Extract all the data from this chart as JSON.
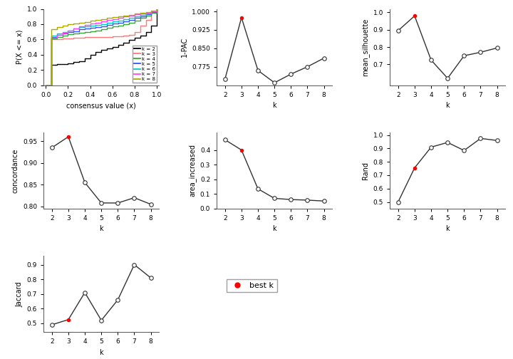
{
  "ecdf": {
    "k2": {
      "x": [
        0.0,
        0.05,
        0.1,
        0.15,
        0.2,
        0.25,
        0.3,
        0.35,
        0.4,
        0.45,
        0.5,
        0.55,
        0.6,
        0.65,
        0.7,
        0.75,
        0.8,
        0.85,
        0.9,
        0.95,
        1.0
      ],
      "y": [
        0.0,
        0.27,
        0.28,
        0.28,
        0.29,
        0.3,
        0.31,
        0.35,
        0.4,
        0.44,
        0.46,
        0.48,
        0.5,
        0.53,
        0.56,
        0.59,
        0.62,
        0.65,
        0.7,
        0.78,
        1.0
      ]
    },
    "k3": {
      "x": [
        0.0,
        0.05,
        0.1,
        0.15,
        0.2,
        0.25,
        0.3,
        0.35,
        0.4,
        0.45,
        0.5,
        0.55,
        0.6,
        0.65,
        0.7,
        0.75,
        0.8,
        0.85,
        0.9,
        0.95,
        1.0
      ],
      "y": [
        0.0,
        0.6,
        0.6,
        0.61,
        0.61,
        0.62,
        0.62,
        0.63,
        0.63,
        0.63,
        0.63,
        0.63,
        0.64,
        0.64,
        0.65,
        0.66,
        0.7,
        0.78,
        0.86,
        0.95,
        1.0
      ]
    },
    "k4": {
      "x": [
        0.0,
        0.05,
        0.1,
        0.15,
        0.2,
        0.25,
        0.3,
        0.35,
        0.4,
        0.45,
        0.5,
        0.55,
        0.6,
        0.65,
        0.7,
        0.75,
        0.8,
        0.85,
        0.9,
        0.95,
        1.0
      ],
      "y": [
        0.0,
        0.61,
        0.63,
        0.65,
        0.67,
        0.68,
        0.69,
        0.7,
        0.71,
        0.72,
        0.73,
        0.75,
        0.77,
        0.78,
        0.8,
        0.82,
        0.85,
        0.88,
        0.91,
        0.95,
        1.0
      ]
    },
    "k5": {
      "x": [
        0.0,
        0.05,
        0.1,
        0.15,
        0.2,
        0.25,
        0.3,
        0.35,
        0.4,
        0.45,
        0.5,
        0.55,
        0.6,
        0.65,
        0.7,
        0.75,
        0.8,
        0.85,
        0.9,
        0.95,
        1.0
      ],
      "y": [
        0.0,
        0.63,
        0.66,
        0.68,
        0.7,
        0.71,
        0.73,
        0.74,
        0.75,
        0.76,
        0.77,
        0.79,
        0.81,
        0.82,
        0.84,
        0.86,
        0.88,
        0.9,
        0.93,
        0.96,
        1.0
      ]
    },
    "k6": {
      "x": [
        0.0,
        0.05,
        0.1,
        0.15,
        0.2,
        0.25,
        0.3,
        0.35,
        0.4,
        0.45,
        0.5,
        0.55,
        0.6,
        0.65,
        0.7,
        0.75,
        0.8,
        0.85,
        0.9,
        0.95,
        1.0
      ],
      "y": [
        0.0,
        0.65,
        0.68,
        0.7,
        0.72,
        0.74,
        0.76,
        0.77,
        0.78,
        0.79,
        0.8,
        0.82,
        0.84,
        0.85,
        0.87,
        0.88,
        0.9,
        0.92,
        0.94,
        0.97,
        1.0
      ]
    },
    "k7": {
      "x": [
        0.0,
        0.05,
        0.1,
        0.15,
        0.2,
        0.25,
        0.3,
        0.35,
        0.4,
        0.45,
        0.5,
        0.55,
        0.6,
        0.65,
        0.7,
        0.75,
        0.8,
        0.85,
        0.9,
        0.95,
        1.0
      ],
      "y": [
        0.0,
        0.62,
        0.66,
        0.69,
        0.72,
        0.74,
        0.77,
        0.79,
        0.81,
        0.82,
        0.84,
        0.86,
        0.87,
        0.88,
        0.9,
        0.91,
        0.93,
        0.94,
        0.95,
        0.97,
        1.0
      ]
    },
    "k8": {
      "x": [
        0.0,
        0.05,
        0.1,
        0.15,
        0.2,
        0.25,
        0.3,
        0.35,
        0.4,
        0.45,
        0.5,
        0.55,
        0.6,
        0.65,
        0.7,
        0.75,
        0.8,
        0.85,
        0.9,
        0.95,
        1.0
      ],
      "y": [
        0.0,
        0.73,
        0.76,
        0.78,
        0.8,
        0.81,
        0.82,
        0.83,
        0.85,
        0.86,
        0.87,
        0.88,
        0.89,
        0.9,
        0.91,
        0.92,
        0.94,
        0.95,
        0.96,
        0.98,
        1.0
      ]
    }
  },
  "ecdf_colors": {
    "k2": "#000000",
    "k3": "#FF7777",
    "k4": "#33AA33",
    "k5": "#3355FF",
    "k6": "#00CCCC",
    "k7": "#FF44FF",
    "k8": "#AAAA00"
  },
  "pac": {
    "k": [
      2,
      3,
      4,
      5,
      6,
      7,
      8
    ],
    "y": [
      0.725,
      0.975,
      0.76,
      0.71,
      0.745,
      0.775,
      0.81
    ],
    "best_k": 3,
    "ylim": [
      0.7,
      1.01
    ],
    "yticks": [
      0.775,
      0.85,
      0.925,
      1.0
    ],
    "ylabel": "1-PAC"
  },
  "silhouette": {
    "k": [
      2,
      3,
      4,
      5,
      6,
      7,
      8
    ],
    "y": [
      0.895,
      0.98,
      0.725,
      0.62,
      0.75,
      0.77,
      0.795
    ],
    "best_k": 3,
    "ylim": [
      0.58,
      1.02
    ],
    "yticks": [
      0.7,
      0.8,
      0.9,
      1.0
    ],
    "ylabel": "mean_silhouette"
  },
  "concordance": {
    "k": [
      2,
      3,
      4,
      5,
      6,
      7,
      8
    ],
    "y": [
      0.935,
      0.96,
      0.855,
      0.808,
      0.808,
      0.82,
      0.805
    ],
    "best_k": 3,
    "ylim": [
      0.795,
      0.97
    ],
    "yticks": [
      0.8,
      0.85,
      0.9,
      0.95
    ],
    "ylabel": "concordance"
  },
  "area_increased": {
    "k": [
      2,
      3,
      4,
      5,
      6,
      7,
      8
    ],
    "y": [
      0.47,
      0.4,
      0.135,
      0.07,
      0.062,
      0.058,
      0.052
    ],
    "best_k": 3,
    "ylim": [
      0.0,
      0.52
    ],
    "yticks": [
      0.0,
      0.1,
      0.2,
      0.3,
      0.4
    ],
    "ylabel": "area_increased"
  },
  "rand": {
    "k": [
      2,
      3,
      4,
      5,
      6,
      7,
      8
    ],
    "y": [
      0.5,
      0.755,
      0.91,
      0.945,
      0.885,
      0.975,
      0.96
    ],
    "best_k": 3,
    "ylim": [
      0.45,
      1.02
    ],
    "yticks": [
      0.5,
      0.6,
      0.7,
      0.8,
      0.9,
      1.0
    ],
    "ylabel": "Rand"
  },
  "jaccard": {
    "k": [
      2,
      3,
      4,
      5,
      6,
      7,
      8
    ],
    "y": [
      0.49,
      0.525,
      0.71,
      0.52,
      0.66,
      0.9,
      0.81
    ],
    "best_k": 3,
    "ylim": [
      0.44,
      0.96
    ],
    "yticks": [
      0.5,
      0.6,
      0.7,
      0.8,
      0.9
    ],
    "ylabel": "Jaccard"
  },
  "bg_color": "#FFFFFF",
  "plot_bg": "#FFFFFF",
  "line_color": "#333333",
  "dot_open_color": "#FFFFFF",
  "dot_best_color": "#FF0000",
  "dot_size": 4,
  "line_width": 1.0,
  "font_size": 7,
  "tick_font_size": 6.5
}
